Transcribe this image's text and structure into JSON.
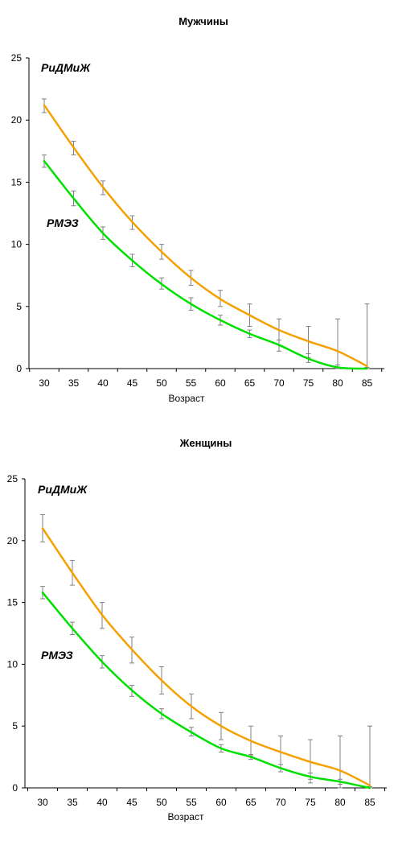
{
  "chart_data": [
    {
      "type": "line",
      "title": "Мужчины",
      "xlabel": "Возраст",
      "ylabel": "",
      "x": [
        30,
        35,
        40,
        45,
        50,
        55,
        60,
        65,
        70,
        75,
        80,
        85
      ],
      "ylim": [
        0,
        25
      ],
      "yticks": [
        0,
        5,
        10,
        15,
        20,
        25
      ],
      "grid": false,
      "series": [
        {
          "name": "РиДМиЖ",
          "color": "#f5a000",
          "values": [
            21.2,
            17.8,
            14.6,
            11.8,
            9.4,
            7.3,
            5.6,
            4.3,
            3.1,
            2.2,
            1.4,
            0.2
          ],
          "err_low": [
            20.6,
            17.2,
            14.0,
            11.2,
            8.8,
            6.7,
            5.0,
            3.4,
            2.3,
            0.9,
            0.0,
            0.0
          ],
          "err_high": [
            21.7,
            18.3,
            15.1,
            12.3,
            10.0,
            7.9,
            6.3,
            5.2,
            4.0,
            3.4,
            4.0,
            5.2
          ]
        },
        {
          "name": "РМЭЗ",
          "color": "#00e000",
          "values": [
            16.7,
            13.7,
            10.9,
            8.7,
            6.8,
            5.2,
            3.9,
            2.8,
            1.9,
            0.8,
            0.1,
            0.0
          ],
          "err_low": [
            16.2,
            13.1,
            10.4,
            8.2,
            6.4,
            4.7,
            3.5,
            2.5,
            1.4,
            0.5,
            0.0,
            0.0
          ],
          "err_high": [
            17.2,
            14.3,
            11.4,
            9.2,
            7.3,
            5.7,
            4.3,
            3.1,
            2.3,
            1.2,
            0.3,
            0.1
          ]
        }
      ]
    },
    {
      "type": "line",
      "title": "Женщины",
      "xlabel": "Возраст",
      "ylabel": "",
      "x": [
        30,
        35,
        40,
        45,
        50,
        55,
        60,
        65,
        70,
        75,
        80,
        85
      ],
      "ylim": [
        0,
        25
      ],
      "yticks": [
        0,
        5,
        10,
        15,
        20,
        25
      ],
      "grid": false,
      "series": [
        {
          "name": "РиДМиЖ",
          "color": "#f5a000",
          "values": [
            21.0,
            17.4,
            14.0,
            11.2,
            8.7,
            6.6,
            5.0,
            3.8,
            2.9,
            2.1,
            1.4,
            0.2
          ],
          "err_low": [
            19.9,
            16.4,
            12.9,
            10.1,
            7.6,
            5.6,
            3.9,
            2.6,
            1.6,
            0.4,
            0.0,
            0.0
          ],
          "err_high": [
            22.1,
            18.4,
            15.0,
            12.2,
            9.8,
            7.6,
            6.1,
            5.0,
            4.2,
            3.9,
            4.2,
            5.0
          ]
        },
        {
          "name": "РМЭЗ",
          "color": "#00e000",
          "values": [
            15.8,
            12.9,
            10.2,
            7.9,
            6.0,
            4.5,
            3.2,
            2.5,
            1.6,
            0.9,
            0.5,
            0.0
          ],
          "err_low": [
            15.3,
            12.4,
            9.7,
            7.4,
            5.6,
            4.2,
            2.9,
            2.3,
            1.3,
            0.7,
            0.3,
            0.0
          ],
          "err_high": [
            16.3,
            13.4,
            10.7,
            8.3,
            6.4,
            4.9,
            3.5,
            2.7,
            1.9,
            1.2,
            0.7,
            0.1
          ]
        }
      ]
    }
  ]
}
